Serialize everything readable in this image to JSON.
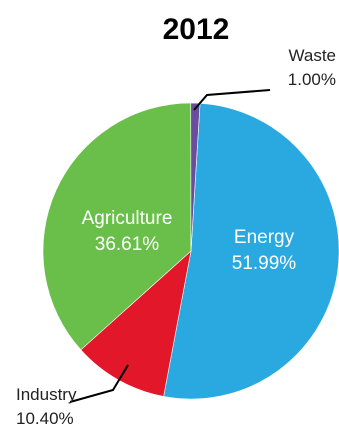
{
  "chart_data": {
    "type": "pie",
    "title": "2012",
    "start_angle_deg": 3.5,
    "direction": "clockwise",
    "slices": [
      {
        "label": "Energy",
        "value": 51.99,
        "value_label": "51.99%",
        "color": "#2aa9e0",
        "label_position": "inside"
      },
      {
        "label": "Industry",
        "value": 10.4,
        "value_label": "10.40%",
        "color": "#e3172a",
        "label_position": "outside-bottom-left"
      },
      {
        "label": "Agriculture",
        "value": 36.61,
        "value_label": "36.61%",
        "color": "#6abf4b",
        "label_position": "inside"
      },
      {
        "label": "Waste",
        "value": 1.0,
        "value_label": "1.00%",
        "color": "#6a4d9e",
        "label_position": "outside-top-right"
      }
    ]
  }
}
